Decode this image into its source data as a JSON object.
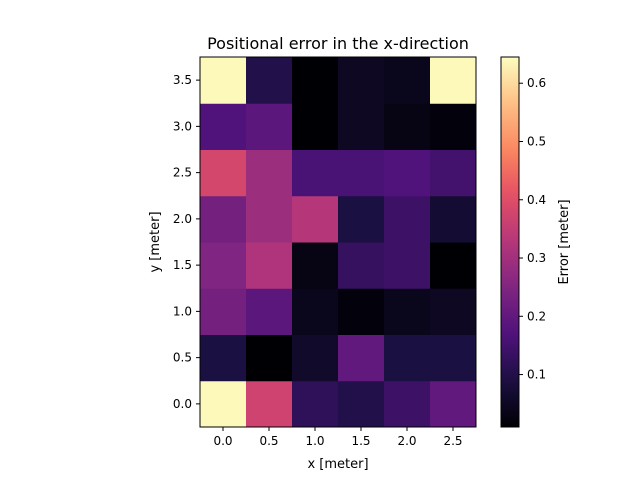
{
  "chart_data": {
    "type": "heatmap",
    "title": "Positional error in the x-direction",
    "xlabel": "x [meter]",
    "ylabel": "y [meter]",
    "x": [
      0.0,
      0.5,
      1.0,
      1.5,
      2.0,
      2.5
    ],
    "y": [
      0.0,
      0.5,
      1.0,
      1.5,
      2.0,
      2.5,
      3.0,
      3.5
    ],
    "x_tick_labels": [
      "0.0",
      "0.5",
      "1.0",
      "1.5",
      "2.0",
      "2.5"
    ],
    "y_tick_labels": [
      "0.0",
      "0.5",
      "1.0",
      "1.5",
      "2.0",
      "2.5",
      "3.0",
      "3.5"
    ],
    "xlim": [
      -0.25,
      2.75
    ],
    "ylim": [
      -0.25,
      3.75
    ],
    "values": [
      [
        0.64,
        0.37,
        0.12,
        0.1,
        0.14,
        0.2
      ],
      [
        0.09,
        0.01,
        0.06,
        0.2,
        0.09,
        0.09
      ],
      [
        0.23,
        0.19,
        0.04,
        0.02,
        0.04,
        0.05
      ],
      [
        0.25,
        0.32,
        0.03,
        0.13,
        0.14,
        0.01
      ],
      [
        0.23,
        0.29,
        0.33,
        0.09,
        0.14,
        0.07
      ],
      [
        0.38,
        0.29,
        0.16,
        0.16,
        0.17,
        0.15
      ],
      [
        0.17,
        0.19,
        0.01,
        0.05,
        0.03,
        0.02
      ],
      [
        0.64,
        0.1,
        0.01,
        0.05,
        0.04,
        0.64
      ]
    ],
    "colormap": "magma",
    "vmin": 0.01,
    "vmax": 0.645,
    "colorbar": {
      "label": "Error [meter]",
      "ticks": [
        0.1,
        0.2,
        0.3,
        0.4,
        0.5,
        0.6
      ],
      "tick_labels": [
        "0.1",
        "0.2",
        "0.3",
        "0.4",
        "0.5",
        "0.6"
      ]
    },
    "grid": false
  }
}
